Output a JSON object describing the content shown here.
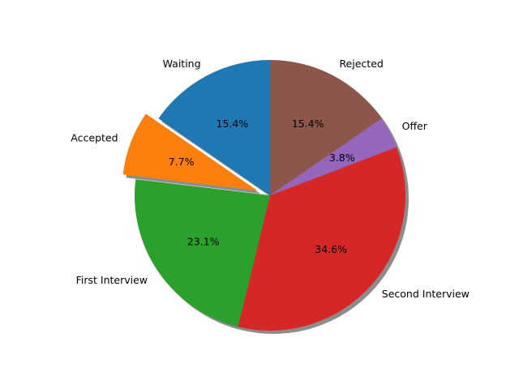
{
  "chart_data": {
    "type": "pie",
    "title": "",
    "start_angle_deg": 90,
    "direction": "counterclockwise",
    "shadow": true,
    "slices": [
      {
        "label": "Waiting",
        "value": 15.4,
        "pct_label": "15.4%",
        "color": "#1f77b4",
        "exploded": false
      },
      {
        "label": "Accepted",
        "value": 7.7,
        "pct_label": "7.7%",
        "color": "#ff7f0e",
        "exploded": true
      },
      {
        "label": "First Interview",
        "value": 23.1,
        "pct_label": "23.1%",
        "color": "#2ca02c",
        "exploded": false
      },
      {
        "label": "Second Interview",
        "value": 34.6,
        "pct_label": "34.6%",
        "color": "#d62728",
        "exploded": false
      },
      {
        "label": "Offer",
        "value": 3.8,
        "pct_label": "3.8%",
        "color": "#9467bd",
        "exploded": false
      },
      {
        "label": "Rejected",
        "value": 15.4,
        "pct_label": "15.4%",
        "color": "#8c564b",
        "exploded": false
      }
    ]
  }
}
